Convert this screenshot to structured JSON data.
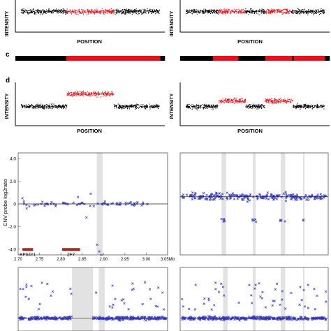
{
  "figure": {
    "panel_labels": {
      "c": "c",
      "d": "d"
    },
    "top_row": {
      "ylabel": "INTENSITY",
      "xlabel": "POSITION"
    },
    "middle_rows": {
      "ylabel": "INTENSITY",
      "xlabel": "POSITION"
    }
  },
  "chart_data": [
    {
      "type": "scatter",
      "panel": "top-left",
      "xlabel": "POSITION",
      "ylabel": "INTENSITY",
      "segments": [
        {
          "from": 0.0,
          "to": 0.33,
          "level": "normal",
          "color": "#000000"
        },
        {
          "from": 0.33,
          "to": 0.67,
          "level": "normal",
          "color": "#e0141b"
        },
        {
          "from": 0.67,
          "to": 1.0,
          "level": "normal",
          "color": "#000000"
        }
      ]
    },
    {
      "type": "scatter",
      "panel": "top-right",
      "xlabel": "POSITION",
      "ylabel": "INTENSITY",
      "segments": [
        {
          "from": 0.0,
          "to": 0.23,
          "level": "normal",
          "color": "#000000"
        },
        {
          "from": 0.23,
          "to": 0.43,
          "level": "normal",
          "color": "#e0141b"
        },
        {
          "from": 0.43,
          "to": 0.57,
          "level": "normal",
          "color": "#000000"
        },
        {
          "from": 0.57,
          "to": 0.76,
          "level": "normal",
          "color": "#e0141b"
        },
        {
          "from": 0.76,
          "to": 1.0,
          "level": "normal",
          "color": "#000000"
        }
      ]
    },
    {
      "type": "bar",
      "panel": "c-left",
      "segments": [
        {
          "from": 0.0,
          "to": 0.34,
          "color": "#000000"
        },
        {
          "from": 0.34,
          "to": 0.97,
          "color": "#e0141b"
        },
        {
          "from": 0.97,
          "to": 1.0,
          "color": "#000000"
        }
      ]
    },
    {
      "type": "bar",
      "panel": "c-right",
      "segments": [
        {
          "from": 0.0,
          "to": 0.22,
          "color": "#000000"
        },
        {
          "from": 0.22,
          "to": 0.39,
          "color": "#e0141b"
        },
        {
          "from": 0.39,
          "to": 0.57,
          "color": "#000000"
        },
        {
          "from": 0.57,
          "to": 0.75,
          "color": "#e0141b"
        },
        {
          "from": 0.75,
          "to": 0.76,
          "color": "#000000"
        },
        {
          "from": 0.76,
          "to": 0.97,
          "color": "#e0141b"
        },
        {
          "from": 0.97,
          "to": 1.0,
          "color": "#000000"
        }
      ]
    },
    {
      "type": "scatter",
      "panel": "d-left",
      "xlabel": "POSITION",
      "ylabel": "INTENSITY",
      "segments": [
        {
          "from": 0.0,
          "to": 0.33,
          "level": "low",
          "color": "#000000"
        },
        {
          "from": 0.33,
          "to": 0.67,
          "level": "high",
          "color": "#e0141b"
        },
        {
          "from": 0.67,
          "to": 1.0,
          "level": "low",
          "color": "#000000"
        }
      ]
    },
    {
      "type": "scatter",
      "panel": "d-right",
      "xlabel": "POSITION",
      "ylabel": "INTENSITY",
      "segments": [
        {
          "from": 0.0,
          "to": 0.23,
          "level": "low",
          "color": "#000000"
        },
        {
          "from": 0.23,
          "to": 0.43,
          "level": "high",
          "color": "#e0141b"
        },
        {
          "from": 0.43,
          "to": 0.57,
          "level": "low",
          "color": "#000000"
        },
        {
          "from": 0.57,
          "to": 0.77,
          "level": "high",
          "color": "#e0141b"
        },
        {
          "from": 0.77,
          "to": 1.0,
          "level": "low",
          "color": "#000000"
        }
      ]
    },
    {
      "type": "scatter",
      "panel": "cnv-top-left",
      "ylabel": "CNV probe log2ratio",
      "xlim": [
        2.7,
        3.05
      ],
      "ylim": [
        -4.5,
        4.5
      ],
      "x_ticks": [
        "2.70",
        "2.75",
        "2.80",
        "2.85",
        "2.90",
        "2.95",
        "3.00",
        "3.05Mb"
      ],
      "y_ticks": [
        "4.0",
        "2.0",
        "0",
        "-2.0",
        "-4.0"
      ],
      "genes": [
        {
          "label": "RPS4Y1",
          "from": 2.71,
          "to": 2.735
        },
        {
          "label": "ZFY",
          "from": 2.803,
          "to": 2.845
        }
      ],
      "shaded_regions": [
        [
          2.884,
          2.898
        ]
      ],
      "points_color": "#3a3fc4"
    },
    {
      "type": "scatter",
      "panel": "cnv-top-right",
      "shaded_regions_frac": [
        [
          0.28,
          0.31
        ],
        [
          0.49,
          0.51
        ],
        [
          0.68,
          0.71
        ],
        [
          0.83,
          0.84
        ]
      ],
      "points_color": "#3a3fc4"
    },
    {
      "type": "scatter",
      "panel": "cnv-bottom-left",
      "shaded_regions_frac": [
        [
          0.36,
          0.5
        ],
        [
          0.54,
          0.58
        ]
      ],
      "points_color": "#3a3fc4"
    },
    {
      "type": "scatter",
      "panel": "cnv-bottom-right",
      "shaded_regions_frac": [
        [
          0.29,
          0.32
        ],
        [
          0.49,
          0.51
        ],
        [
          0.68,
          0.71
        ],
        [
          0.83,
          0.84
        ]
      ],
      "points_color": "#3a3fc4"
    }
  ]
}
